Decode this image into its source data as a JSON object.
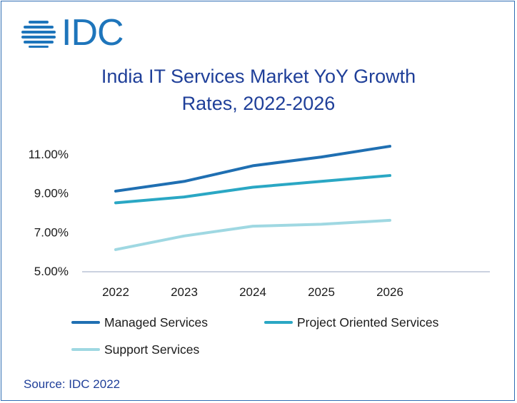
{
  "logo": {
    "text": "IDC"
  },
  "chart_data": {
    "type": "line",
    "title": "India IT Services Market YoY Growth Rates, 2022-2026",
    "title_lines": [
      "India IT Services Market YoY Growth",
      "Rates, 2022-2026"
    ],
    "categories": [
      "2022",
      "2023",
      "2024",
      "2025",
      "2026"
    ],
    "ylim": [
      5.0,
      11.0
    ],
    "yticks": [
      5.0,
      7.0,
      9.0,
      11.0
    ],
    "ytick_labels": [
      "5.00%",
      "7.00%",
      "9.00%",
      "11.00%"
    ],
    "grid": false,
    "legend_position": "bottom",
    "series": [
      {
        "name": "Managed Services",
        "color": "#1f6fb2",
        "values": [
          9.1,
          9.6,
          10.4,
          10.85,
          11.4
        ]
      },
      {
        "name": "Project Oriented Services",
        "color": "#2aa7c4",
        "values": [
          8.5,
          8.8,
          9.3,
          9.6,
          9.9
        ]
      },
      {
        "name": "Support Services",
        "color": "#9fd8e2",
        "values": [
          6.1,
          6.8,
          7.3,
          7.4,
          7.6
        ]
      }
    ]
  },
  "source": "Source: IDC 2022"
}
